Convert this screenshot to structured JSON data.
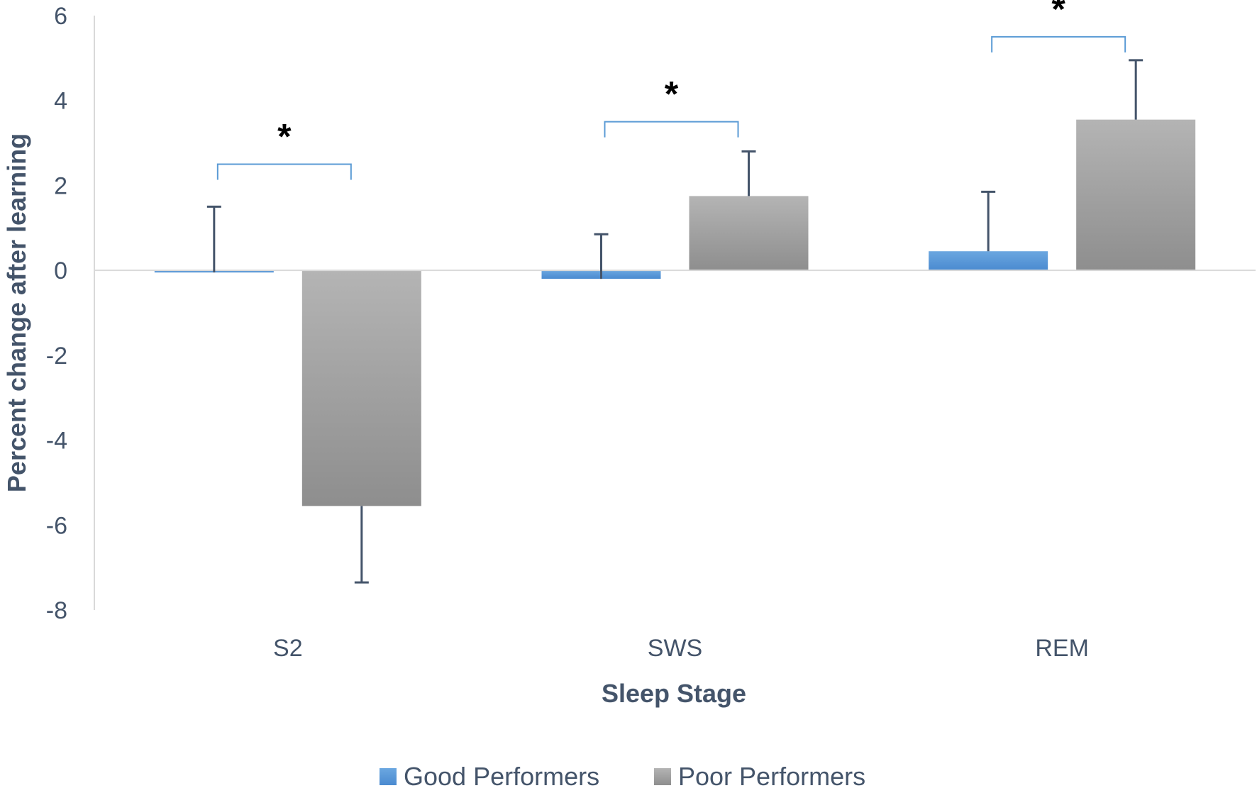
{
  "chart_data": {
    "type": "bar",
    "categories": [
      "S2",
      "SWS",
      "REM"
    ],
    "series": [
      {
        "name": "Good Performers",
        "values": [
          -0.05,
          -0.2,
          0.45
        ],
        "error_plus": [
          1.55,
          1.05,
          1.4
        ],
        "color": "#5b9bd5"
      },
      {
        "name": "Poor Performers",
        "values": [
          -5.55,
          1.75,
          3.55
        ],
        "error_minus": [
          1.8
        ],
        "error_plus": [
          null,
          1.05,
          1.4
        ],
        "color": "#a5a5a5"
      }
    ],
    "xlabel": "Sleep Stage",
    "ylabel": "Percent change after learning",
    "ylim": [
      -8,
      6
    ],
    "yticks": [
      "6",
      "4",
      "2",
      "0",
      "-2",
      "-4",
      "-6",
      "-8"
    ],
    "significance": [
      {
        "category": "S2",
        "label": "*",
        "y": 2.5
      },
      {
        "category": "SWS",
        "label": "*",
        "y": 3.5
      },
      {
        "category": "REM",
        "label": "*",
        "y": 5.5
      }
    ],
    "legend": {
      "position": "bottom"
    },
    "grid": false
  }
}
